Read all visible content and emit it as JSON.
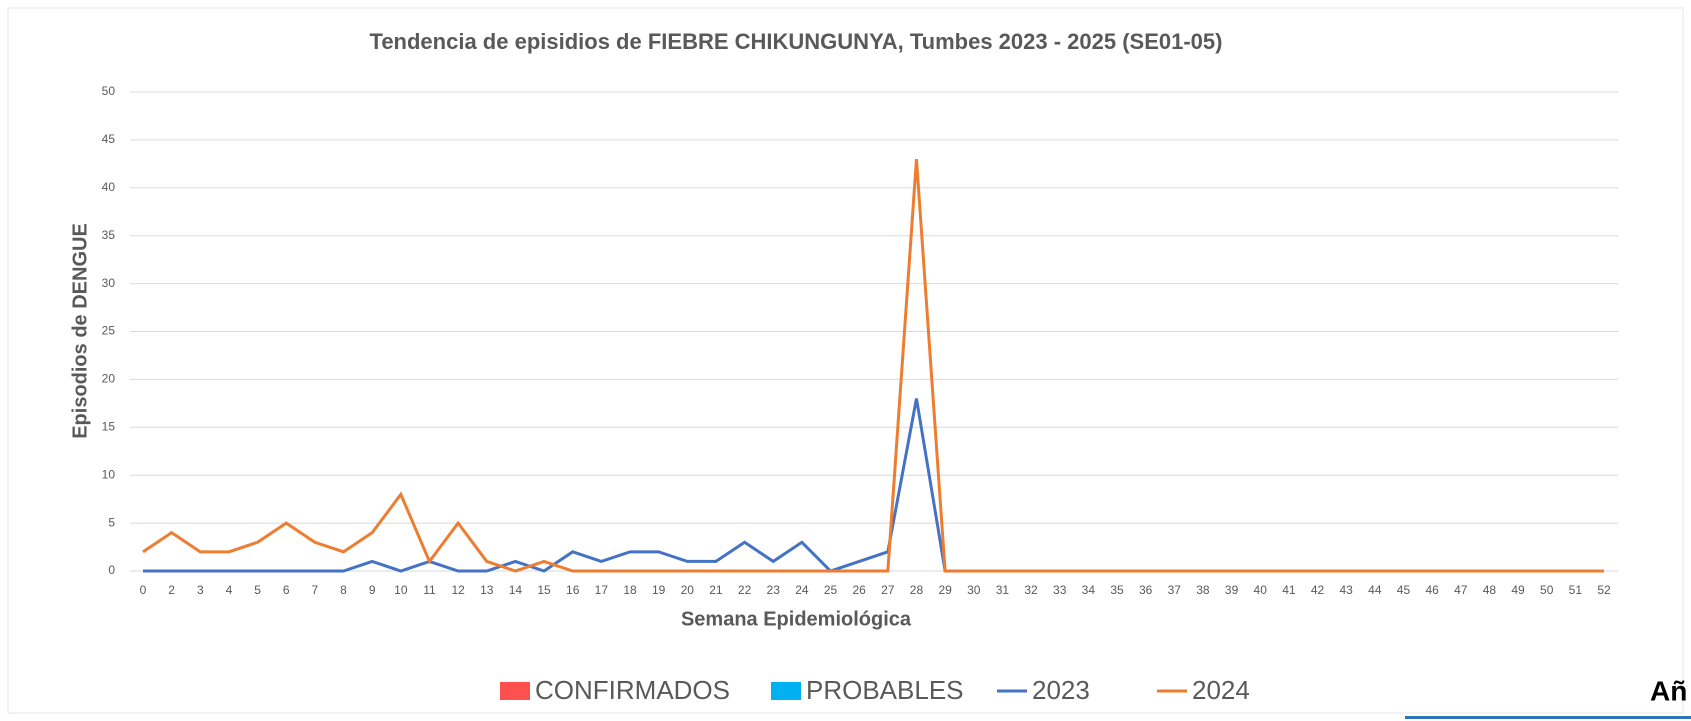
{
  "chart_data": {
    "type": "line",
    "title": "Tendencia de episidios de FIEBRE CHIKUNGUNYA, Tumbes 2023 - 2025 (SE01-05)",
    "x_label": "Semana Epidemiológica",
    "y_label": "Episodios  de DENGUE",
    "categories": [
      "0",
      "2",
      "3",
      "4",
      "5",
      "6",
      "7",
      "8",
      "9",
      "10",
      "11",
      "12",
      "13",
      "14",
      "15",
      "16",
      "17",
      "18",
      "19",
      "20",
      "21",
      "22",
      "23",
      "24",
      "25",
      "26",
      "27",
      "28",
      "29",
      "30",
      "31",
      "32",
      "33",
      "34",
      "35",
      "36",
      "37",
      "38",
      "39",
      "40",
      "41",
      "42",
      "43",
      "44",
      "45",
      "46",
      "47",
      "48",
      "49",
      "50",
      "51",
      "52"
    ],
    "ylim": [
      0,
      50
    ],
    "yticks": [
      0,
      5,
      10,
      15,
      20,
      25,
      30,
      35,
      40,
      45,
      50
    ],
    "grid": true,
    "series": [
      {
        "name": "CONFIRMADOS",
        "color": "#ff5050",
        "kind": "bar",
        "values": [
          null,
          null,
          null,
          null,
          null,
          null,
          null,
          null,
          null,
          null,
          null,
          null,
          null,
          null,
          null,
          null,
          null,
          null,
          null,
          null,
          null,
          null,
          null,
          null,
          null,
          null,
          null,
          null,
          null,
          null,
          null,
          null,
          null,
          null,
          null,
          null,
          null,
          null,
          null,
          null,
          null,
          null,
          null,
          null,
          null,
          null,
          null,
          null,
          null,
          null,
          null,
          null
        ]
      },
      {
        "name": "PROBABLES",
        "color": "#00b0f0",
        "kind": "bar",
        "values": [
          null,
          null,
          null,
          null,
          null,
          null,
          null,
          null,
          null,
          null,
          null,
          null,
          null,
          null,
          null,
          null,
          null,
          null,
          null,
          null,
          null,
          null,
          null,
          null,
          null,
          null,
          null,
          null,
          null,
          null,
          null,
          null,
          null,
          null,
          null,
          null,
          null,
          null,
          null,
          null,
          null,
          null,
          null,
          null,
          null,
          null,
          null,
          null,
          null,
          null,
          null,
          null
        ]
      },
      {
        "name": "2023",
        "color": "#4472c4",
        "kind": "line",
        "values": [
          0,
          0,
          0,
          0,
          0,
          0,
          0,
          0,
          1,
          0,
          1,
          0,
          0,
          1,
          0,
          2,
          1,
          2,
          2,
          1,
          1,
          3,
          1,
          3,
          0,
          1,
          2,
          18,
          0,
          0,
          0,
          0,
          0,
          0,
          0,
          0,
          0,
          0,
          0,
          0,
          0,
          0,
          0,
          0,
          0,
          0,
          0,
          0,
          0,
          0,
          0,
          0
        ]
      },
      {
        "name": "2024",
        "color": "#ed7d31",
        "kind": "line",
        "values": [
          2,
          4,
          2,
          2,
          3,
          5,
          3,
          2,
          4,
          8,
          1,
          5,
          1,
          0,
          1,
          0,
          0,
          0,
          0,
          0,
          0,
          0,
          0,
          0,
          0,
          0,
          0,
          43,
          0,
          0,
          0,
          0,
          0,
          0,
          0,
          0,
          0,
          0,
          0,
          0,
          0,
          0,
          0,
          0,
          0,
          0,
          0,
          0,
          0,
          0,
          0,
          0
        ]
      }
    ],
    "corner_text": "Añ"
  }
}
